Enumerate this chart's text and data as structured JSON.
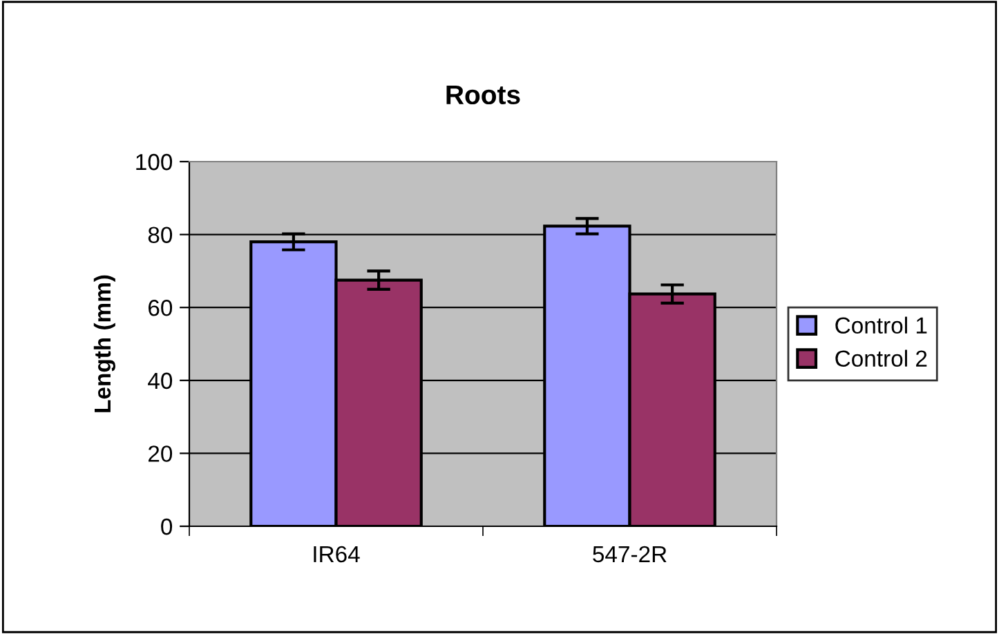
{
  "chart_data": {
    "type": "bar",
    "title": "Roots",
    "ylabel": "Length (mm)",
    "categories": [
      "IR64",
      "547-2R"
    ],
    "series": [
      {
        "name": "Control 1",
        "color": "#9999ff",
        "values": [
          78,
          82.3
        ],
        "errors": [
          2.2,
          2.1
        ]
      },
      {
        "name": "Control 2",
        "color": "#993366",
        "values": [
          67.5,
          63.7
        ],
        "errors": [
          2.5,
          2.5
        ]
      }
    ],
    "ylim": [
      0,
      100
    ],
    "yticks": [
      0,
      20,
      40,
      60,
      80,
      100
    ],
    "grid": "y",
    "legend": "right"
  }
}
